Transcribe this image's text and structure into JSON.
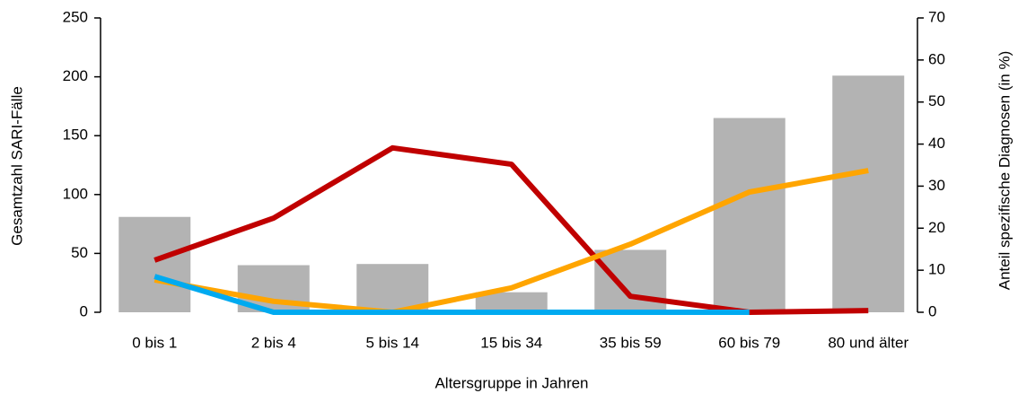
{
  "chart_data": {
    "type": "bar-line",
    "categories": [
      "0 bis 1",
      "2 bis 4",
      "5 bis 14",
      "15 bis 34",
      "35 bis 59",
      "60 bis 79",
      "80 und älter"
    ],
    "values": [
      81,
      40,
      41,
      17,
      53,
      165,
      201
    ],
    "color": "#b3b3b3",
    "series": [
      {
        "color": "#c00000",
        "axis": "y2",
        "values": [
          12.4,
          22.4,
          39.1,
          35.2,
          3.8,
          0,
          0.4
        ]
      },
      {
        "color": "#ffa500",
        "axis": "y2",
        "values": [
          7.7,
          2.6,
          0,
          5.8,
          16.2,
          28.6,
          33.7
        ]
      },
      {
        "color": "#00aaf0",
        "axis": "y2",
        "values": [
          8.5,
          0,
          0,
          0,
          0,
          0,
          null
        ]
      }
    ],
    "ylabel": "Gesamtzahl SARI-Fälle",
    "y2label": "Anteil spezifische Diagnosen (in %)",
    "xlabel": "Altersgruppe in Jahren",
    "ylim": [
      0,
      250
    ],
    "yticks": [
      0,
      50,
      100,
      150,
      200,
      250
    ],
    "y2lim": [
      0,
      70
    ],
    "y2ticks": [
      0,
      10,
      20,
      30,
      40,
      50,
      60,
      70
    ],
    "grid": false
  }
}
